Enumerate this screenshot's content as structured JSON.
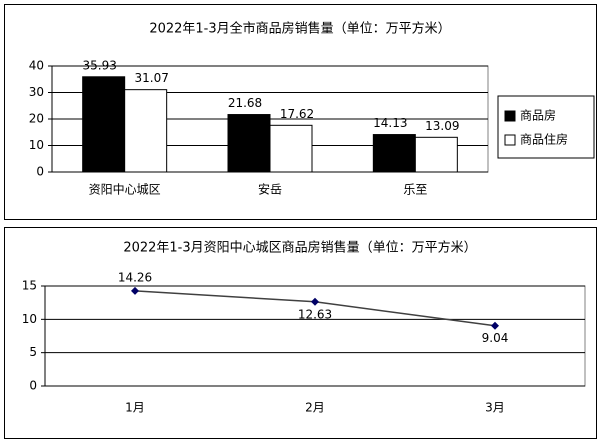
{
  "chart_data": [
    {
      "type": "bar",
      "title": "2022年1-3月全市商品房销售量（单位：万平方米）",
      "categories": [
        "资阳中心城区",
        "安岳",
        "乐至"
      ],
      "series": [
        {
          "name": "商品房",
          "color": "#000000",
          "values": [
            35.93,
            21.68,
            14.13
          ]
        },
        {
          "name": "商品住房",
          "color": "#ffffff",
          "values": [
            31.07,
            17.62,
            13.09
          ]
        }
      ],
      "ylim": [
        0,
        40
      ],
      "yticks": [
        0,
        10,
        20,
        30,
        40
      ],
      "grid": true,
      "legend": "right"
    },
    {
      "type": "line",
      "title": "2022年1-3月资阳中心城区商品房销售量（单位：万平方米）",
      "categories": [
        "1月",
        "2月",
        "3月"
      ],
      "values": [
        14.26,
        12.63,
        9.04
      ],
      "color": "#404040",
      "marker_color": "#000066",
      "ylim": [
        0,
        15
      ],
      "yticks": [
        0,
        5,
        10,
        15
      ],
      "grid": true
    }
  ]
}
